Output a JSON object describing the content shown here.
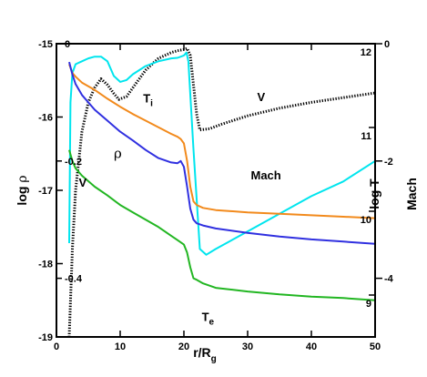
{
  "chart_data": {
    "type": "line",
    "xlabel_main": "r/R",
    "xlabel_sub": "g",
    "ylabel_left_main": "log",
    "ylabel_left_sym": "ρ",
    "ylabel_right1": "log T",
    "ylabel_right2": "Mach",
    "xlim": [
      0,
      50
    ],
    "ylim_left": [
      -19,
      -15
    ],
    "ylim_velocity": [
      -0.5,
      0
    ],
    "ylim_logT": [
      8.5,
      12
    ],
    "ylim_mach": [
      -5,
      0
    ],
    "xticks": [
      "0",
      "10",
      "20",
      "30",
      "40",
      "50"
    ],
    "yticks_left": [
      "-15",
      "-16",
      "-17",
      "-18",
      "-19"
    ],
    "yticks_velocity": [
      "0",
      "-0.2",
      "-0.4"
    ],
    "yticks_logT": [
      "12",
      "11",
      "10",
      "9"
    ],
    "yticks_mach": [
      "0",
      "-2",
      "-4"
    ],
    "series": [
      {
        "name": "V",
        "color": "#000000",
        "dotted": true,
        "axis": "velocity",
        "x": [
          2.0,
          2.5,
          3.0,
          4.0,
          5.0,
          6.0,
          7.0,
          8.0,
          9.0,
          9.8,
          11.0,
          12.0,
          13.0,
          14.0,
          15.0,
          16.0,
          17.0,
          18.0,
          19.0,
          20.0,
          20.5,
          21.0,
          22.0,
          22.5,
          24.0,
          26.0,
          28.0,
          30.0,
          35.0,
          40.0,
          45.0,
          50.0
        ],
        "y": [
          -0.5,
          -0.35,
          -0.25,
          -0.15,
          -0.1,
          -0.075,
          -0.06,
          -0.07,
          -0.085,
          -0.095,
          -0.09,
          -0.075,
          -0.06,
          -0.045,
          -0.035,
          -0.025,
          -0.02,
          -0.015,
          -0.012,
          -0.01,
          -0.008,
          -0.02,
          -0.12,
          -0.147,
          -0.145,
          -0.137,
          -0.13,
          -0.123,
          -0.11,
          -0.1,
          -0.092,
          -0.084
        ]
      },
      {
        "name": "Mach",
        "color": "#00e5ee",
        "dotted": false,
        "axis": "mach",
        "x": [
          2.0,
          2.2,
          2.5,
          3.0,
          4.0,
          5.0,
          6.0,
          7.0,
          8.0,
          9.0,
          10.0,
          11.0,
          12.0,
          14.0,
          16.0,
          18.0,
          19.0,
          20.0,
          20.4,
          20.7,
          21.5,
          22.5,
          23.5,
          25.0,
          30.0,
          35.0,
          40.0,
          45.0,
          50.0
        ],
        "y": [
          -3.4,
          -1.0,
          -0.5,
          -0.35,
          -0.3,
          -0.25,
          -0.22,
          -0.22,
          -0.3,
          -0.55,
          -0.65,
          -0.62,
          -0.52,
          -0.38,
          -0.3,
          -0.25,
          -0.24,
          -0.2,
          -0.15,
          -0.3,
          -1.8,
          -3.5,
          -3.6,
          -3.5,
          -3.2,
          -2.9,
          -2.6,
          -2.35,
          -2.0
        ]
      },
      {
        "name": "Ti",
        "color": "#f28a1c",
        "dotted": false,
        "axis": "left",
        "x": [
          2.0,
          2.5,
          3.0,
          4.0,
          6.0,
          8.0,
          10.0,
          12.0,
          14.0,
          16.0,
          18.0,
          19.0,
          19.5,
          20.0,
          20.5,
          21.0,
          21.5,
          22.0,
          23.0,
          25.0,
          30.0,
          35.0,
          40.0,
          45.0,
          50.0
        ],
        "y": [
          -15.28,
          -15.4,
          -15.45,
          -15.53,
          -15.63,
          -15.75,
          -15.86,
          -15.96,
          -16.05,
          -16.14,
          -16.23,
          -16.27,
          -16.3,
          -16.36,
          -16.6,
          -16.95,
          -17.15,
          -17.2,
          -17.24,
          -17.27,
          -17.3,
          -17.32,
          -17.34,
          -17.36,
          -17.38
        ]
      },
      {
        "name": "ρ",
        "color": "#3030e0",
        "dotted": false,
        "axis": "left",
        "x": [
          2.0,
          2.5,
          3.0,
          4.0,
          6.0,
          8.0,
          10.0,
          12.0,
          14.0,
          16.0,
          18.0,
          19.0,
          19.5,
          20.0,
          20.5,
          21.0,
          21.5,
          22.0,
          23.0,
          25.0,
          30.0,
          35.0,
          40.0,
          45.0,
          50.0
        ],
        "y": [
          -15.25,
          -15.42,
          -15.55,
          -15.7,
          -15.9,
          -16.05,
          -16.2,
          -16.32,
          -16.45,
          -16.56,
          -16.62,
          -16.63,
          -16.6,
          -16.68,
          -16.95,
          -17.25,
          -17.4,
          -17.45,
          -17.48,
          -17.52,
          -17.58,
          -17.63,
          -17.67,
          -17.7,
          -17.73
        ]
      },
      {
        "name": "Te",
        "color": "#22b622",
        "dotted": false,
        "axis": "left",
        "x": [
          2.0,
          2.5,
          3.0,
          4.0,
          6.0,
          8.0,
          10.0,
          12.0,
          14.0,
          16.0,
          18.0,
          19.0,
          20.0,
          20.5,
          21.0,
          21.5,
          22.0,
          23.0,
          25.0,
          30.0,
          35.0,
          40.0,
          45.0,
          50.0
        ],
        "y": [
          -16.45,
          -16.6,
          -16.7,
          -16.8,
          -16.95,
          -17.07,
          -17.2,
          -17.3,
          -17.4,
          -17.5,
          -17.62,
          -17.68,
          -17.74,
          -17.85,
          -18.05,
          -18.2,
          -18.22,
          -18.27,
          -18.33,
          -18.38,
          -18.42,
          -18.45,
          -18.47,
          -18.5
        ]
      }
    ],
    "labels": [
      {
        "text": "V",
        "series": 0,
        "data_x": 31.5,
        "data_y": -15.78
      },
      {
        "text": "V",
        "series": 0,
        "data_x": 3.5,
        "data_y": -16.95
      },
      {
        "text": "Mach",
        "series": 1,
        "data_x": 30.5,
        "data_y": -16.85
      },
      {
        "text": "T",
        "sub": "i",
        "series": 2,
        "data_x": 13.6,
        "data_y": -15.8
      },
      {
        "text": "ρ",
        "series": 3,
        "data_x": 9.0,
        "data_y": -16.56
      },
      {
        "text": "T",
        "sub": "e",
        "series": 4,
        "data_x": 22.8,
        "data_y": -18.78
      }
    ],
    "grid": false,
    "legend": "none"
  }
}
